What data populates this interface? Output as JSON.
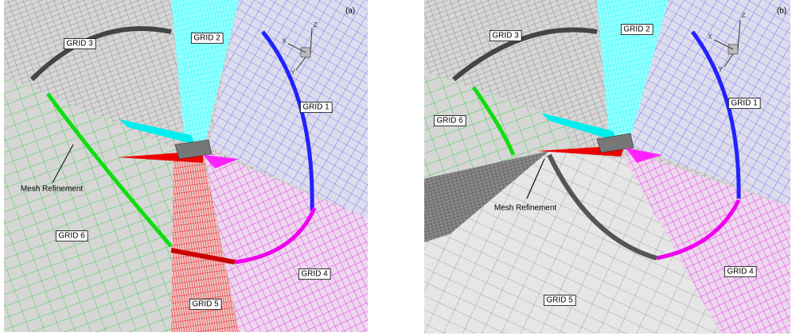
{
  "panels": [
    {
      "label": "(a)",
      "grids": [
        {
          "label": "GRID 3"
        },
        {
          "label": "GRID 2"
        },
        {
          "label": "GRID 1"
        },
        {
          "label": "GRID 6"
        },
        {
          "label": "GRID 5"
        },
        {
          "label": "GRID 4"
        }
      ],
      "annotation": "Mesh Refinement",
      "axes": [
        "X",
        "Y",
        "Z"
      ]
    },
    {
      "label": "(b)",
      "grids": [
        {
          "label": "GRID 3"
        },
        {
          "label": "GRID 2"
        },
        {
          "label": "GRID 1"
        },
        {
          "label": "GRID 6"
        },
        {
          "label": "GRID 5"
        },
        {
          "label": "GRID 4"
        }
      ],
      "annotation": "Mesh Refinement",
      "axes": [
        "X",
        "Y",
        "Z"
      ]
    }
  ]
}
